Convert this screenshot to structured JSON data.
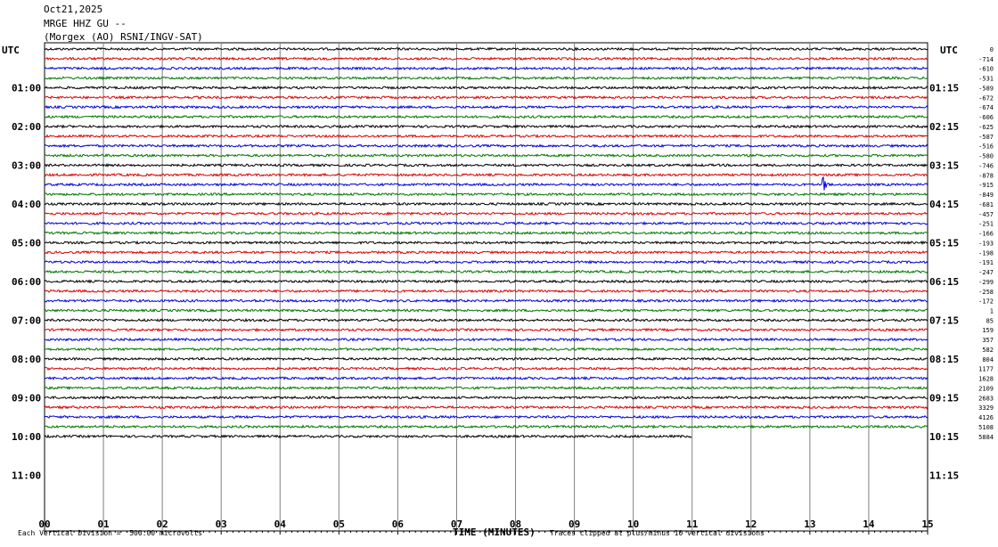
{
  "header": {
    "date": "Oct21,2025",
    "station": "MRGE HHZ GU --",
    "network": "(Morgex (AO) RSNI/INGV-SAT)"
  },
  "chart_data": {
    "type": "line",
    "title": "MRGE HHZ GU --",
    "xlabel": "TIME (MINUTES)",
    "x_ticks": [
      "00",
      "01",
      "02",
      "03",
      "04",
      "05",
      "06",
      "07",
      "08",
      "09",
      "10",
      "11",
      "12",
      "13",
      "14",
      "15"
    ],
    "xlim": [
      0,
      15
    ],
    "left_axis_label": "UTC",
    "right_axis_label": "UTC",
    "left_hour_labels": [
      "01:00",
      "02:00",
      "03:00",
      "04:00",
      "05:00",
      "06:00",
      "07:00",
      "08:00",
      "09:00",
      "10:00",
      "11:00"
    ],
    "right_hour_labels": [
      "01:15",
      "02:15",
      "03:15",
      "04:15",
      "05:15",
      "06:15",
      "07:15",
      "08:15",
      "09:15",
      "10:15",
      "11:15"
    ],
    "trace_colors": [
      "#000000",
      "#dd0000",
      "#0000dd",
      "#007700"
    ],
    "trace_offsets": [
      "0",
      "-714",
      "-610",
      "-531",
      "-589",
      "-672",
      "-674",
      "-606",
      "-625",
      "-587",
      "-516",
      "-580",
      "-746",
      "-878",
      "-915",
      "-849",
      "-681",
      "-457",
      "-251",
      "-166",
      "-193",
      "-198",
      "-191",
      "-247",
      "-299",
      "-258",
      "-172",
      "1",
      "85",
      "159",
      "357",
      "582",
      "804",
      "1177",
      "1628",
      "2109",
      "2683",
      "3329",
      "4126",
      "5108",
      "5884"
    ],
    "event": {
      "trace_index": 14,
      "minute": 13.2,
      "description": "seismic event"
    },
    "last_trace_end_minute": 11.0,
    "grid": true
  },
  "footer": {
    "scale_note": "Each Vertical Division =  500.00 microvolts",
    "clip_note": "Traces clipped at plus/minus 10 vertical divisions"
  }
}
